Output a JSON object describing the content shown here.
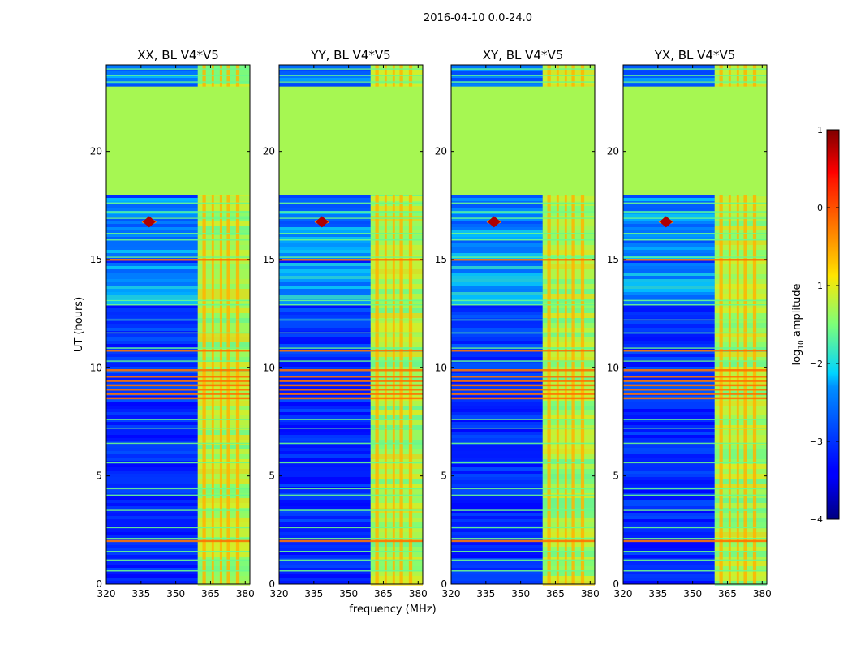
{
  "chart_data": {
    "type": "heatmap",
    "suptitle": "2016-04-10 0.0-24.0",
    "xlabel": "frequency (MHz)",
    "ylabel": "UT (hours)",
    "xlim": [
      320,
      382
    ],
    "ylim": [
      0,
      24
    ],
    "xticks": [
      320,
      335,
      350,
      365,
      380
    ],
    "yticks": [
      0,
      5,
      10,
      15,
      20
    ],
    "flagged_gap_hours": [
      18.0,
      23.0
    ],
    "rfi_band_mhz": [
      359.5,
      382
    ],
    "bright_source": {
      "freq_mhz": 338.5,
      "ut_hours": 16.75
    },
    "panels": [
      {
        "title": "XX, BL V4*V5"
      },
      {
        "title": "YY, BL V4*V5"
      },
      {
        "title": "XY, BL V4*V5"
      },
      {
        "title": "YX, BL V4*V5"
      }
    ],
    "colorbar": {
      "label_prefix": "log",
      "label_sub": "10",
      "label_suffix": " amplitude",
      "range": [
        -4,
        1
      ],
      "ticks": [
        1,
        0,
        -1,
        -2,
        -3,
        -4
      ],
      "tick_labels": [
        "1",
        "0",
        "−1",
        "−2",
        "−3",
        "−4"
      ],
      "colormap": "jet"
    }
  }
}
